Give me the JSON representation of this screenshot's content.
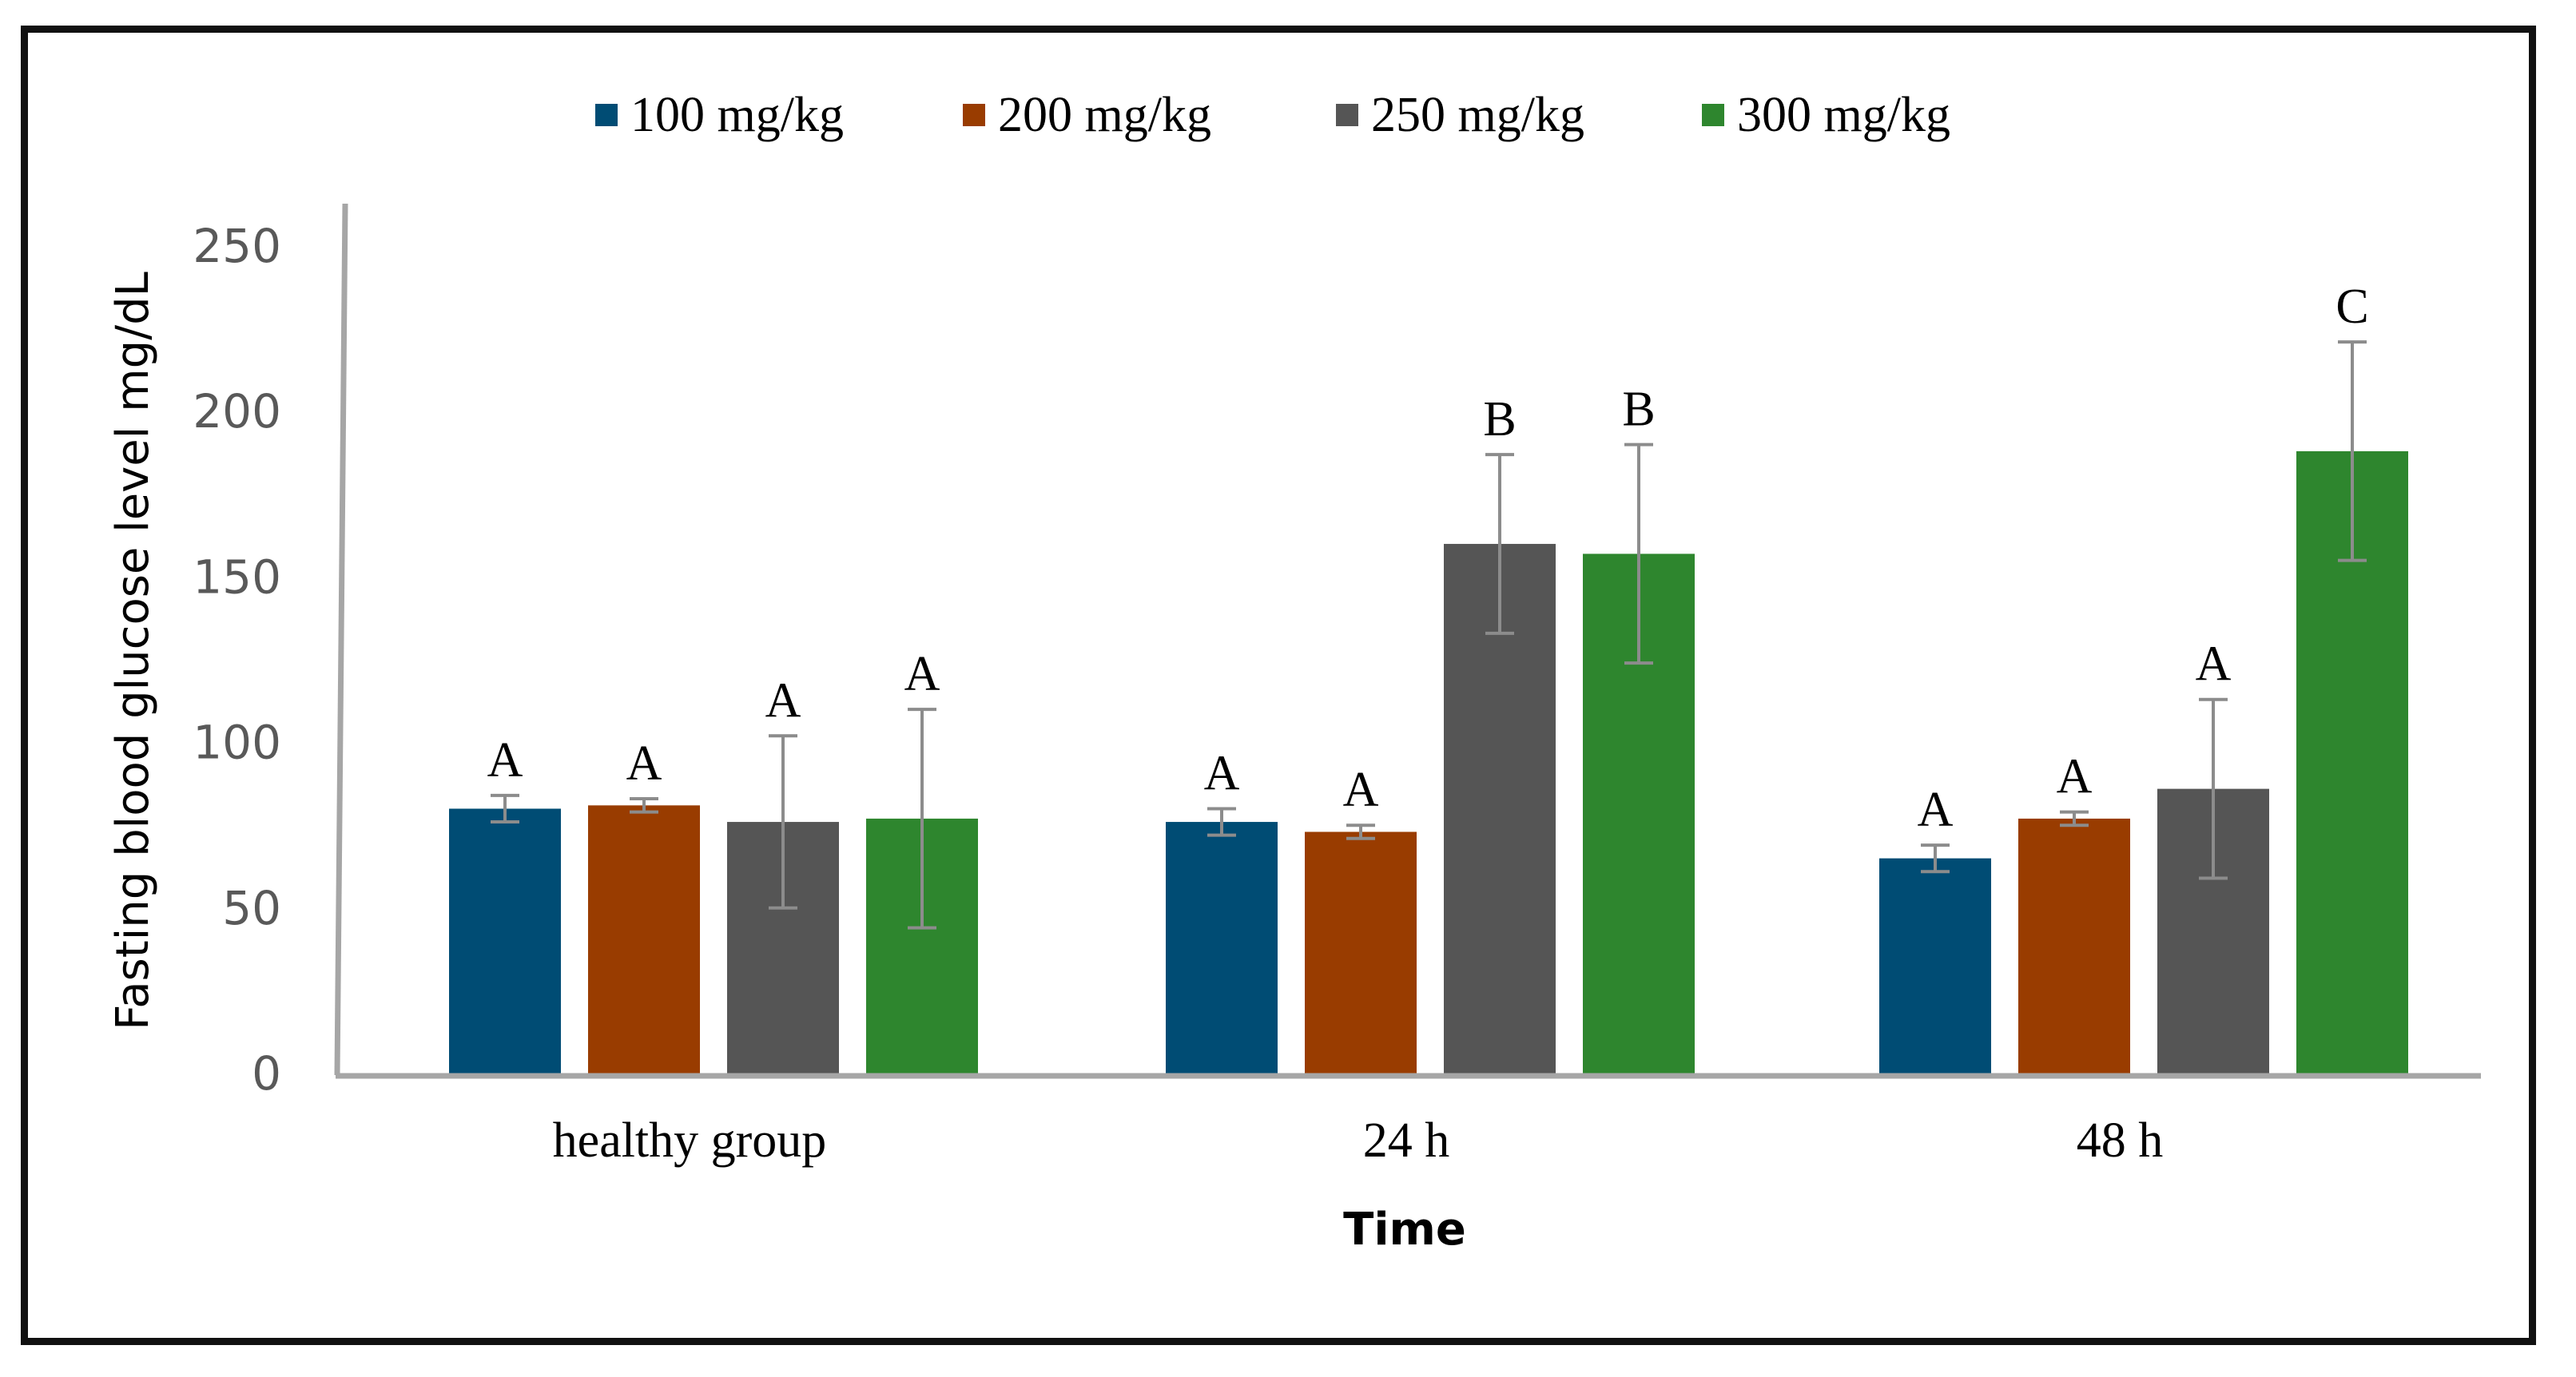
{
  "chart_data": {
    "type": "bar",
    "title": "",
    "xlabel": "Time",
    "ylabel": "Fasting blood glucose level mg/dL",
    "categories": [
      "healthy group",
      "24 h",
      "48 h"
    ],
    "ylim": [
      0,
      250
    ],
    "yticks": [
      0,
      50,
      100,
      150,
      200,
      250
    ],
    "grid": false,
    "legend_position": "top-center",
    "series": [
      {
        "name": "100 mg/kg",
        "color": "#004c74",
        "values": [
          80,
          76,
          65
        ],
        "errors": [
          4,
          4,
          4
        ],
        "labels": [
          "A",
          "A",
          "A"
        ]
      },
      {
        "name": "200 mg/kg",
        "color": "#993c00",
        "values": [
          81,
          73,
          77
        ],
        "errors": [
          2,
          2,
          2
        ],
        "labels": [
          "A",
          "A",
          "A"
        ]
      },
      {
        "name": "250 mg/kg",
        "color": "#555555",
        "values": [
          76,
          160,
          86
        ],
        "errors": [
          26,
          27,
          27
        ],
        "labels": [
          "A",
          "B",
          "A"
        ]
      },
      {
        "name": "300 mg/kg",
        "color": "#2e862e",
        "values": [
          77,
          157,
          188
        ],
        "errors": [
          33,
          33,
          33
        ],
        "labels": [
          "A",
          "B",
          "C"
        ]
      }
    ],
    "axis_color": "#a6a6a6",
    "error_bar_color": "#8c8c8c"
  }
}
